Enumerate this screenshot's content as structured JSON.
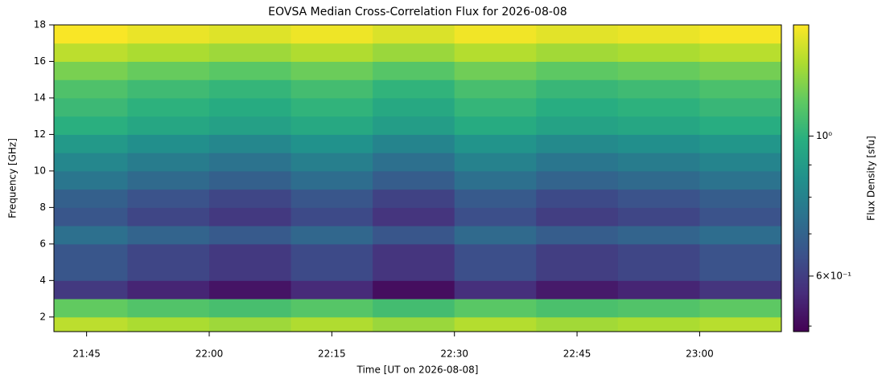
{
  "chart_data": {
    "type": "heatmap",
    "title": "EOVSA Median Cross-Correlation Flux for 2026-08-08",
    "x_label": "Time [UT on 2026-08-08]",
    "y_label": "Frequency [GHz]",
    "colorbar_label": "Flux Density [sfu]",
    "colormap": "viridis",
    "x_edges": [
      "21:41",
      "21:50",
      "22:00",
      "22:10",
      "22:20",
      "22:30",
      "22:40",
      "22:50",
      "23:00",
      "23:10"
    ],
    "y_edges": [
      1.2,
      2,
      3,
      4,
      5,
      6,
      7,
      8,
      9,
      10,
      11,
      12,
      13,
      14,
      15,
      16,
      17,
      18
    ],
    "z": [
      [
        1.34,
        1.3,
        1.27,
        1.31,
        1.26,
        1.32,
        1.28,
        1.3,
        1.33
      ],
      [
        1.14,
        1.1,
        1.07,
        1.11,
        1.06,
        1.12,
        1.08,
        1.1,
        1.13
      ],
      [
        0.59,
        0.55,
        0.52,
        0.56,
        0.51,
        0.57,
        0.53,
        0.55,
        0.58
      ],
      [
        0.66,
        0.62,
        0.59,
        0.63,
        0.58,
        0.64,
        0.6,
        0.62,
        0.65
      ],
      [
        0.66,
        0.62,
        0.59,
        0.63,
        0.58,
        0.64,
        0.6,
        0.62,
        0.65
      ],
      [
        0.74,
        0.7,
        0.67,
        0.71,
        0.66,
        0.72,
        0.68,
        0.7,
        0.73
      ],
      [
        0.66,
        0.62,
        0.59,
        0.63,
        0.58,
        0.64,
        0.6,
        0.62,
        0.65
      ],
      [
        0.69,
        0.65,
        0.62,
        0.66,
        0.61,
        0.67,
        0.63,
        0.65,
        0.68
      ],
      [
        0.76,
        0.72,
        0.69,
        0.73,
        0.68,
        0.74,
        0.7,
        0.72,
        0.75
      ],
      [
        0.82,
        0.78,
        0.75,
        0.79,
        0.74,
        0.8,
        0.76,
        0.78,
        0.81
      ],
      [
        0.89,
        0.85,
        0.82,
        0.86,
        0.81,
        0.87,
        0.83,
        0.85,
        0.88
      ],
      [
        0.99,
        0.95,
        0.92,
        0.96,
        0.91,
        0.97,
        0.93,
        0.95,
        0.98
      ],
      [
        1.04,
        1.0,
        0.97,
        1.01,
        0.96,
        1.02,
        0.98,
        1.0,
        1.03
      ],
      [
        1.09,
        1.05,
        1.02,
        1.06,
        1.01,
        1.07,
        1.03,
        1.05,
        1.08
      ],
      [
        1.19,
        1.15,
        1.12,
        1.16,
        1.11,
        1.17,
        1.13,
        1.15,
        1.18
      ],
      [
        1.34,
        1.3,
        1.27,
        1.31,
        1.26,
        1.32,
        1.28,
        1.3,
        1.33
      ],
      [
        1.49,
        1.45,
        1.42,
        1.46,
        1.41,
        1.47,
        1.43,
        1.45,
        1.48
      ]
    ],
    "xlim": [
      "21:41",
      "23:10"
    ],
    "xticks": [
      "21:45",
      "22:00",
      "22:15",
      "22:30",
      "22:45",
      "23:00"
    ],
    "ylim": [
      1.2,
      18
    ],
    "yticks": [
      2,
      4,
      6,
      8,
      10,
      12,
      14,
      16,
      18
    ],
    "clim": [
      0.49,
      1.5
    ],
    "clog": true,
    "cticks": [
      {
        "value": 1,
        "label": "10⁰"
      },
      {
        "value": 0.6,
        "label": "6×10⁻¹"
      }
    ],
    "cticks_minor": [
      0.5,
      0.7,
      0.8,
      0.9
    ]
  }
}
